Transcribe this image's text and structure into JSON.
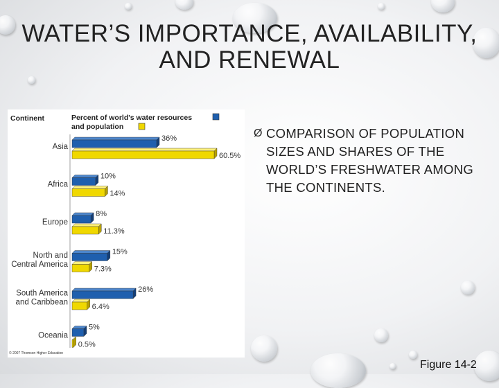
{
  "slide": {
    "title_line1": "WATER’S IMPORTANCE, AVAILABILITY,",
    "title_line2": "AND RENEWAL",
    "bullet_marker": "Ø",
    "bullet_text": "COMPARISON OF POPULATION SIZES AND SHARES OF THE WORLD’S FRESHWATER AMONG THE CONTINENTS.",
    "figure_caption": "Figure 14-2"
  },
  "chart_data": {
    "type": "bar",
    "orientation": "horizontal",
    "category_header": "Continent",
    "legend_title_line1": "Percent of world's water resources",
    "legend_title_line2": "and population",
    "categories": [
      [
        "Asia"
      ],
      [
        "Africa"
      ],
      [
        "Europe"
      ],
      [
        "North and",
        "Central America"
      ],
      [
        "South America",
        "and Caribbean"
      ],
      [
        "Oceania"
      ]
    ],
    "series": [
      {
        "color": "#1f5fae",
        "values": [
          36,
          10,
          8,
          15,
          26,
          5
        ],
        "labels": [
          "36%",
          "10%",
          "8%",
          "15%",
          "26%",
          "5%"
        ]
      },
      {
        "color": "#f0d800",
        "values": [
          60.5,
          14,
          11.3,
          7.3,
          6.4,
          0.5
        ],
        "labels": [
          "60.5%",
          "14%",
          "11.3%",
          "7.3%",
          "6.4%",
          "0.5%"
        ]
      }
    ],
    "copyright": "© 2007 Thomson Higher Education",
    "grid": false
  }
}
